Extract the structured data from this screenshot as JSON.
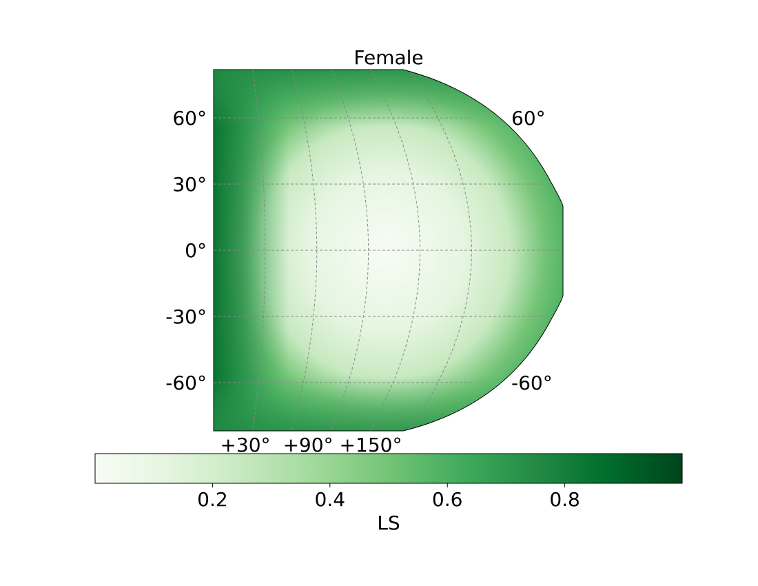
{
  "chart_data": {
    "type": "heatmap",
    "title": "Female",
    "projection": "partial-globe",
    "colormap": "Greens",
    "latitude_ticks": [
      {
        "value": 60,
        "label": "60°"
      },
      {
        "value": 30,
        "label": "30°"
      },
      {
        "value": 0,
        "label": "0°"
      },
      {
        "value": -30,
        "label": "-30°"
      },
      {
        "value": -60,
        "label": "-60°"
      }
    ],
    "right_latitude_labels": [
      {
        "value": 60,
        "label": "60°"
      },
      {
        "value": -60,
        "label": "-60°"
      }
    ],
    "longitude_tick_labels": [
      "+30°",
      "+90°",
      "+150°"
    ],
    "longitude_gridlines_east_deg": [
      30,
      60,
      90,
      120,
      150
    ],
    "colorbar": {
      "label": "LS",
      "range": [
        0,
        1
      ],
      "ticks": [
        0.2,
        0.4,
        0.6,
        0.8
      ],
      "tick_labels": [
        "0.2",
        "0.4",
        "0.6",
        "0.8"
      ],
      "colors": [
        "#f7fcf5",
        "#e5f5e0",
        "#c7e9c0",
        "#a1d99b",
        "#74c476",
        "#41ab5d",
        "#238b45",
        "#006d2c",
        "#00441b"
      ]
    },
    "grid": true,
    "data_description": "LS low (0.0–0.1) in center, increasing to ~0.9 at left edge and high latitudes"
  }
}
